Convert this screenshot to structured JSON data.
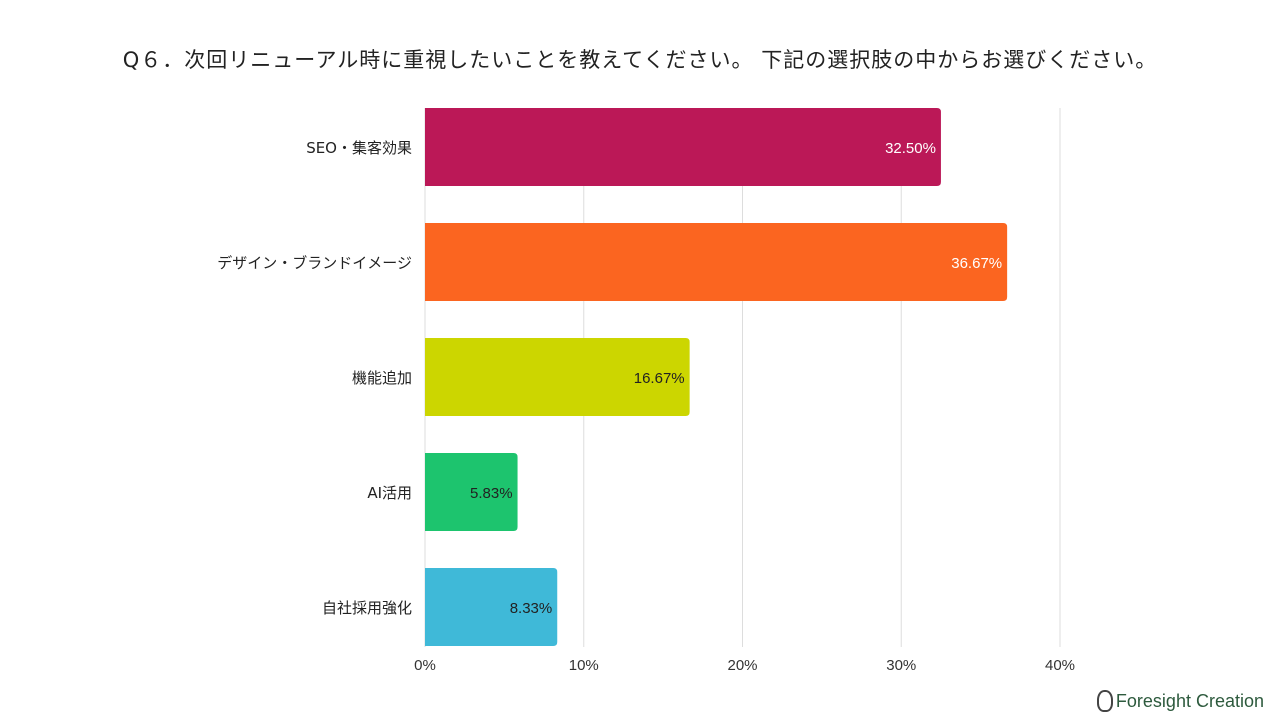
{
  "chart_data": {
    "type": "bar",
    "orientation": "horizontal",
    "title": "Q６．次回リニューアル時に重視したいことを教えてください。 下記の選択肢の中からお選びください。",
    "categories": [
      "SEO・集客効果",
      "デザイン・ブランドイメージ",
      "機能追加",
      "AI活用",
      "自社採用強化"
    ],
    "values": [
      32.5,
      36.67,
      16.67,
      5.83,
      8.33
    ],
    "data_labels": [
      "32.50%",
      "36.67%",
      "16.67%",
      "5.83%",
      "8.33%"
    ],
    "colors": [
      "#bb1857",
      "#fb6520",
      "#ccd600",
      "#1dc46e",
      "#3fb9d8"
    ],
    "label_colors": [
      "#ffffff",
      "#ffffff",
      "#222222",
      "#222222",
      "#222222"
    ],
    "xlim": [
      0,
      40
    ],
    "xticks": [
      0,
      10,
      20,
      30,
      40
    ],
    "xtick_labels": [
      "0%",
      "10%",
      "20%",
      "30%",
      "40%"
    ],
    "grid": true,
    "xlabel": "",
    "ylabel": ""
  },
  "logo": {
    "text": "Foresight Creation"
  }
}
